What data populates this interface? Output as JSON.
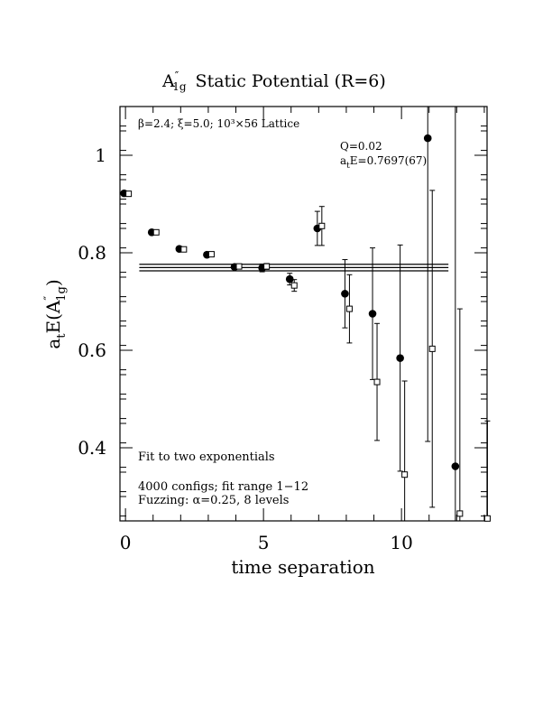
{
  "chart_data": {
    "type": "scatter",
    "title": "A″1g Static Potential (R=6)",
    "title_main": "A",
    "title_sup": "″",
    "title_sub": "1g",
    "title_rest": "Static Potential (R=6)",
    "xlabel": "time separation",
    "ylabel_main": "a",
    "ylabel_sub1": "t",
    "ylabel_mid": "E(A",
    "ylabel_sup": "″",
    "ylabel_sub2": "1g",
    "ylabel_end": ")",
    "xlim": [
      -0.2,
      13.1
    ],
    "ylim": [
      0.25,
      1.1
    ],
    "x_ticks": [
      0,
      5,
      10
    ],
    "x_tick_labels": [
      "0",
      "5",
      "10"
    ],
    "y_ticks": [
      0.4,
      0.6,
      0.8,
      1.0
    ],
    "y_tick_labels": [
      "0.4",
      "0.6",
      "0.8",
      "1"
    ],
    "annotations": {
      "lattice": "β=2.4; ξ=5.0; 10³×56 Lattice",
      "q": "Q=0.02",
      "energy_main": "a",
      "energy_sub": "t",
      "energy_rest": "E=0.7697(67)",
      "fit_desc": "Fit to two exponentials",
      "configs": "4000 configs; fit range 1−12",
      "fuzzing": "Fuzzing: α=0.25, 8 levels"
    },
    "fit": {
      "value": 0.7697,
      "error": 0.0067,
      "x_range": [
        0.5,
        11.7
      ]
    },
    "series": [
      {
        "marker": "filled-circle",
        "points": [
          {
            "x": 0,
            "y": 0.922,
            "err": 0.002
          },
          {
            "x": 1,
            "y": 0.842,
            "err": 0.003
          },
          {
            "x": 2,
            "y": 0.808,
            "err": 0.003
          },
          {
            "x": 3,
            "y": 0.796,
            "err": 0.004
          },
          {
            "x": 4,
            "y": 0.771,
            "err": 0.005
          },
          {
            "x": 5,
            "y": 0.769,
            "err": 0.008
          },
          {
            "x": 6,
            "y": 0.746,
            "err": 0.012
          },
          {
            "x": 7,
            "y": 0.85,
            "err": 0.035
          },
          {
            "x": 8,
            "y": 0.716,
            "err": 0.07
          },
          {
            "x": 9,
            "y": 0.675,
            "err": 0.135
          },
          {
            "x": 10,
            "y": 0.584,
            "err": 0.232
          },
          {
            "x": 11,
            "y": 1.035,
            "err": 0.622
          },
          {
            "x": 12,
            "y": 0.362,
            "err": 0.95
          }
        ]
      },
      {
        "marker": "open-square",
        "points": [
          {
            "x": 0,
            "y": 0.921,
            "err": 0.002
          },
          {
            "x": 1,
            "y": 0.842,
            "err": 0.003
          },
          {
            "x": 2,
            "y": 0.807,
            "err": 0.003
          },
          {
            "x": 3,
            "y": 0.797,
            "err": 0.004
          },
          {
            "x": 4,
            "y": 0.772,
            "err": 0.005
          },
          {
            "x": 5,
            "y": 0.772,
            "err": 0.006
          },
          {
            "x": 6,
            "y": 0.733,
            "err": 0.012
          },
          {
            "x": 7,
            "y": 0.855,
            "err": 0.04
          },
          {
            "x": 8,
            "y": 0.685,
            "err": 0.07
          },
          {
            "x": 9,
            "y": 0.535,
            "err": 0.12
          },
          {
            "x": 10,
            "y": 0.345,
            "err": 0.192
          },
          {
            "x": 11,
            "y": 0.603,
            "err": 0.325
          },
          {
            "x": 12,
            "y": 0.265,
            "err": 0.42
          },
          {
            "x": 13,
            "y": 0.255,
            "err": 0.2
          }
        ]
      }
    ]
  }
}
